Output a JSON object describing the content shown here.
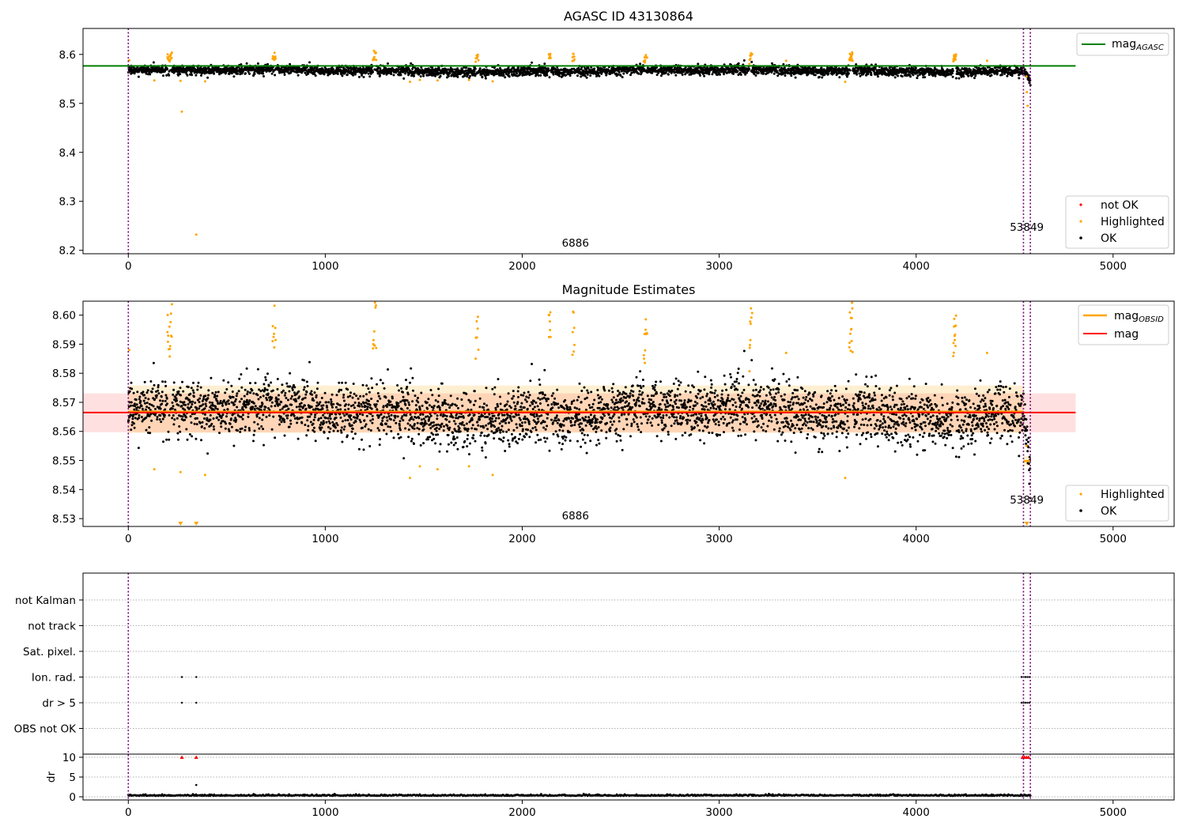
{
  "colors": {
    "ok": "#000000",
    "highlighted": "#ffa500",
    "not_ok": "#ff0000",
    "mag_agasc": "#008000",
    "mag": "#ff0000",
    "mag_obsid": "#ffa500",
    "obs_boundary": "#800080",
    "grid": "#b0b0b0"
  },
  "chart_data": [
    {
      "type": "scatter",
      "title": "AGASC ID 43130864",
      "xlim": [
        -230,
        5310
      ],
      "ylim": [
        8.193,
        8.653
      ],
      "xticks": [
        0,
        1000,
        2000,
        3000,
        4000,
        5000
      ],
      "yticks": [
        8.2,
        8.3,
        8.4,
        8.5,
        8.6
      ],
      "ytick_labels": [
        "8.2",
        "8.3",
        "8.4",
        "8.5",
        "8.6"
      ],
      "lines": [
        {
          "name": "mag_AGASC",
          "label_main": "mag",
          "label_sub": "AGASC",
          "y": 8.5765,
          "x": [
            -230,
            4810
          ]
        }
      ],
      "obs_boundaries": [
        0,
        4545,
        4580
      ],
      "obs_labels": [
        {
          "text": "6886",
          "x": 2270
        },
        {
          "text": "53849",
          "x": 4562
        }
      ],
      "legend_lines_position": "upper-right",
      "legend_points_position": "lower-right",
      "legend_points": [
        "not OK",
        "Highlighted",
        "OK"
      ]
    },
    {
      "type": "scatter",
      "title": "Magnitude Estimates",
      "xlim": [
        -230,
        5310
      ],
      "ylim": [
        8.5273,
        8.6048
      ],
      "xticks": [
        0,
        1000,
        2000,
        3000,
        4000,
        5000
      ],
      "yticks": [
        8.53,
        8.54,
        8.55,
        8.56,
        8.57,
        8.58,
        8.59,
        8.6
      ],
      "ytick_labels": [
        "8.53",
        "8.54",
        "8.55",
        "8.56",
        "8.57",
        "8.58",
        "8.59",
        "8.60"
      ],
      "lines": [
        {
          "name": "mag_OBSID",
          "label_main": "mag",
          "label_sub": "OBSID"
        },
        {
          "name": "mag",
          "label_main": "mag",
          "label_sub": ""
        }
      ],
      "mag_value": 8.5665,
      "mag_band": [
        8.5597,
        8.5731
      ],
      "obsid_segments": [
        {
          "x": [
            0,
            4545
          ],
          "mag": 8.5668,
          "band": [
            8.5595,
            8.5758
          ]
        },
        {
          "x": [
            4545,
            4580
          ],
          "mag": 8.5498,
          "band": [
            8.5482,
            8.5515
          ]
        }
      ],
      "obs_boundaries": [
        0,
        4545,
        4580
      ],
      "obs_labels": [
        {
          "text": "6886",
          "x": 2270
        },
        {
          "text": "53849",
          "x": 4562
        }
      ],
      "legend_points": [
        "Highlighted",
        "OK"
      ]
    },
    {
      "type": "scatter",
      "title": "",
      "xlim": [
        -230,
        5310
      ],
      "xticks": [
        0,
        1000,
        2000,
        3000,
        4000,
        5000
      ],
      "flag_rows": [
        "not Kalman",
        "not track",
        "Sat. pixel.",
        "Ion. rad.",
        "dr > 5",
        "OBS not OK"
      ],
      "flag_points": [
        {
          "flag": "Ion. rad.",
          "x": [
            272,
            345,
            4535,
            4545,
            4555,
            4565,
            4575
          ]
        },
        {
          "flag": "dr > 5",
          "x": [
            272,
            345,
            4535,
            4545,
            4555,
            4565,
            4575
          ]
        }
      ],
      "dr_panel": {
        "ylabel": "dr",
        "ylim": [
          -0.8,
          10.8
        ],
        "yticks": [
          0,
          5,
          10
        ],
        "clipped_x": [
          272,
          345,
          4540,
          4550,
          4560,
          4570
        ],
        "outlier_points": [
          {
            "x": 345,
            "y": 3.0
          }
        ]
      },
      "obs_boundaries": [
        0,
        4545,
        4580
      ]
    }
  ]
}
